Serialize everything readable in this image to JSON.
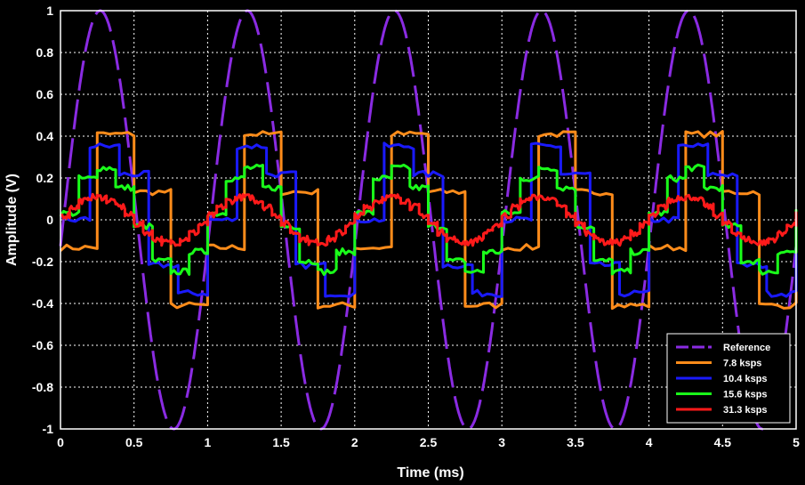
{
  "chart_data": {
    "type": "line",
    "title": "",
    "xlabel": "Time (ms)",
    "ylabel": "Amplitude (V)",
    "xlim": [
      0,
      5
    ],
    "ylim": [
      -1,
      1
    ],
    "x_ticks": [
      "0",
      "0.5",
      "1",
      "1.5",
      "2",
      "2.5",
      "3",
      "3.5",
      "4",
      "4.5",
      "5"
    ],
    "y_ticks": [
      "1",
      "0.8",
      "0.6",
      "0.4",
      "0.2",
      "0",
      "-0.2",
      "-0.4",
      "-0.6",
      "-0.8",
      "-1"
    ],
    "grid": true,
    "legend_position": "bottom-right",
    "background": "#000000",
    "signal_frequency_khz": 1,
    "series": [
      {
        "name": "Reference",
        "color": "#8a2be2",
        "amplitude": 1.0,
        "phase_ms": 0.02,
        "style": "dashed",
        "sample_rate_ksps": null
      },
      {
        "name": "7.8 ksps",
        "color": "#ff8c1a",
        "amplitude": 0.43,
        "phase_ms": 0.05,
        "style": "solid",
        "sample_rate_ksps": 7.8
      },
      {
        "name": "10.4 ksps",
        "color": "#1a1aff",
        "amplitude": 0.37,
        "phase_ms": 0.0,
        "style": "solid",
        "sample_rate_ksps": 10.4
      },
      {
        "name": "15.6 ksps",
        "color": "#1aff1a",
        "amplitude": 0.25,
        "phase_ms": -0.02,
        "style": "solid",
        "sample_rate_ksps": 15.6
      },
      {
        "name": "31.3 ksps",
        "color": "#ff1a1a",
        "amplitude": 0.11,
        "phase_ms": -0.03,
        "style": "solid",
        "sample_rate_ksps": 31.3
      }
    ]
  }
}
